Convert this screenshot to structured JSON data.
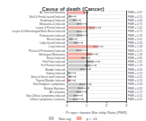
{
  "chart_data": {
    "type": "bar",
    "orientation": "horizontal",
    "title": "Cause of death (Cancer)",
    "xlabel": "Pr opo r tionate Mor tality Ratio (PMR)",
    "categories": [
      "All Selected Mortality",
      "Skull & Finely Injured Induced",
      "Esophageal Induced",
      "Melanoma & Induced",
      "Larynx & Partial Induced",
      "Larynx & Differentiaged Male Renal Induced",
      "Pulmonaries Induced",
      "Rectal Induced",
      "Lady Injured Induced",
      "Lung Induced",
      "Pleural & Pulmational Induced",
      "Meningeal Melanoma",
      "Breast Induced",
      "Pink Fake Induced",
      "Full Frontal Induced",
      "Bladder Induced",
      "Kidney Induced",
      "Brain & Nerve-work Induced",
      "Thyroid Bladder Induced",
      "Non-Hodgkin's Lymphoma",
      "Multiple Myeloma",
      "All Leukemia",
      "Non-Diffuse Lymphoma Induced",
      "Diffuse Lymphoma Leukemia"
    ],
    "series": [
      {
        "name": "Non-sig",
        "color": "#c8c8c8",
        "values": [
          null,
          0.25,
          0.49,
          0.75,
          null,
          0.75,
          0.78,
          0.31,
          0.58,
          null,
          0.75,
          null,
          null,
          1.35,
          1.19,
          0.94,
          0.19,
          0.25,
          null,
          0.93,
          0.83,
          0.73,
          0.55,
          0.55
        ]
      },
      {
        "name": "p < .01",
        "color": "#f4a9a0",
        "values": [
          0.97,
          null,
          null,
          null,
          1.42,
          null,
          null,
          null,
          null,
          1.58,
          null,
          1.28,
          0.95,
          null,
          null,
          null,
          null,
          null,
          0.19,
          null,
          null,
          null,
          null,
          null
        ]
      }
    ],
    "ci_low": [
      0.88,
      0.12,
      0.34,
      0.54,
      1.17,
      0.54,
      0.56,
      0.18,
      0.4,
      1.38,
      0.52,
      1.05,
      0.78,
      1.08,
      0.94,
      0.72,
      0.06,
      0.11,
      0.07,
      0.68,
      0.6,
      0.52,
      0.37,
      0.35
    ],
    "ci_high": [
      1.07,
      0.45,
      0.69,
      1.0,
      1.7,
      1.0,
      1.04,
      0.5,
      0.8,
      1.81,
      1.04,
      1.55,
      1.15,
      1.65,
      1.47,
      1.19,
      0.43,
      0.45,
      0.42,
      1.22,
      1.11,
      0.98,
      0.78,
      0.82
    ],
    "right_labels": [
      "PMR = 0.97",
      "PMR = 0.25",
      "PMR = 0.49",
      "PMR = 0.75",
      "PMR = 1.42",
      "PMR = 0.75",
      "PMR = 0.78",
      "PMR = 0.31",
      "PMR = 0.58",
      "PMR = 1.58",
      "PMR = 0.75",
      "PMR = 1.28",
      "PMR = 0.95",
      "PMR = 1.35",
      "PMR = 1.19",
      "PMR = 0.94",
      "PMR = 0.19",
      "PMR = 0.25",
      "PMR = 0.19",
      "PMR = 0.93",
      "PMR = 0.83",
      "PMR = 0.73",
      "PMR = 0.55",
      "PMR = 0.55"
    ],
    "ref_line": 1.0,
    "xlim": [
      0,
      3.0
    ],
    "xticks": [
      0,
      1,
      2,
      3
    ],
    "grid": true,
    "legend": "bottom"
  }
}
